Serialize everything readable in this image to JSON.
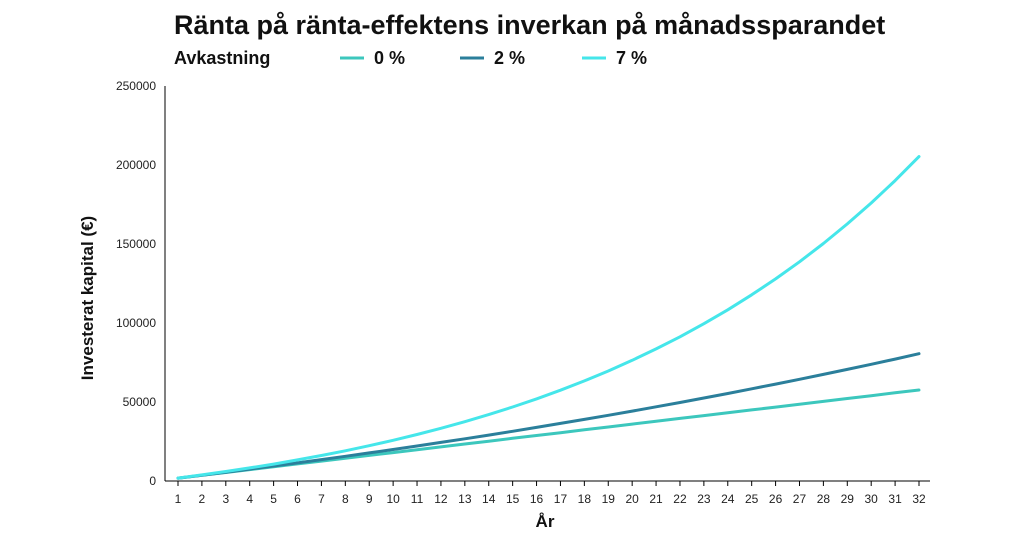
{
  "chart_data": {
    "type": "line",
    "title": "Ränta på ränta-effektens inverkan på månadssparandet",
    "legend_title": "Avkastning",
    "legend_position": "top",
    "xlabel": "År",
    "ylabel": "Investerat kapital (€)",
    "x": [
      1,
      2,
      3,
      4,
      5,
      6,
      7,
      8,
      9,
      10,
      11,
      12,
      13,
      14,
      15,
      16,
      17,
      18,
      19,
      20,
      21,
      22,
      23,
      24,
      25,
      26,
      27,
      28,
      29,
      30,
      31,
      32
    ],
    "xlim": [
      1,
      32
    ],
    "ylim": [
      0,
      250000
    ],
    "yticks": [
      0,
      50000,
      100000,
      150000,
      200000,
      250000
    ],
    "grid": false,
    "series": [
      {
        "name": "0 %",
        "color": "#3cc7bd",
        "values": [
          1800,
          3600,
          5400,
          7200,
          9000,
          10800,
          12600,
          14400,
          16200,
          18000,
          19800,
          21600,
          23400,
          25200,
          27000,
          28800,
          30600,
          32400,
          34200,
          36000,
          37800,
          39600,
          41400,
          43200,
          45000,
          46800,
          48600,
          50400,
          52200,
          54000,
          55800,
          57600
        ]
      },
      {
        "name": "2 %",
        "color": "#2b7f9b",
        "values": [
          1820,
          3677,
          5571,
          7503,
          9473,
          11483,
          13533,
          15625,
          17758,
          19934,
          22154,
          24418,
          26727,
          29082,
          31485,
          33936,
          36436,
          38986,
          41587,
          44240,
          46946,
          49706,
          52522,
          55394,
          58323,
          61311,
          64359,
          67468,
          70639,
          73874,
          77173,
          80538
        ]
      },
      {
        "name": "7 %",
        "color": "#45e6ea",
        "values": [
          1863,
          3856,
          5988,
          8270,
          10712,
          13325,
          16121,
          19112,
          22313,
          25738,
          29402,
          33324,
          37519,
          42008,
          46812,
          51952,
          57451,
          63336,
          69633,
          76370,
          83579,
          91293,
          99547,
          108378,
          117828,
          127939,
          138758,
          150334,
          162721,
          175974,
          190156,
          205330
        ]
      }
    ]
  }
}
